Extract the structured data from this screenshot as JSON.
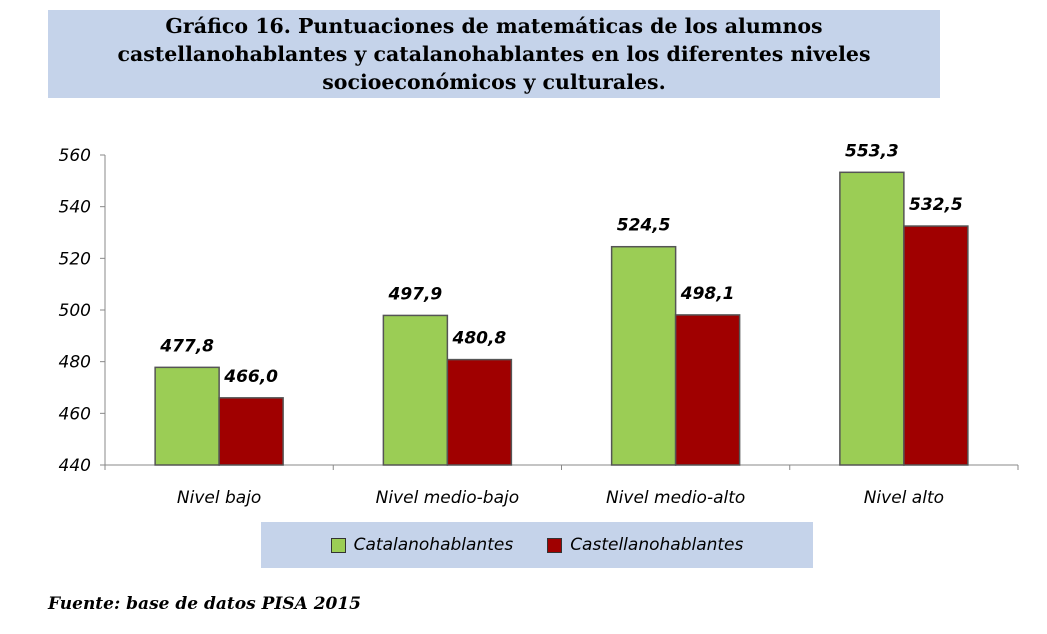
{
  "title": "Gráfico 16. Puntuaciones de matemáticas de los alumnos\ncastellanohablantes y catalanohablantes en los diferentes niveles\nsocioeconómicos y culturales.",
  "source": "Fuente: base de datos PISA 2015",
  "colors": {
    "catalan": "#9bcd55",
    "castellano": "#a00000",
    "panel": "#c5d3ea"
  },
  "chart_data": {
    "type": "bar",
    "categories": [
      "Nivel bajo",
      "Nivel medio-bajo",
      "Nivel medio-alto",
      "Nivel alto"
    ],
    "series": [
      {
        "name": "Catalanohablantes",
        "values": [
          477.8,
          497.9,
          524.5,
          553.3
        ],
        "labels": [
          "477,8",
          "497,9",
          "524,5",
          "553,3"
        ]
      },
      {
        "name": "Castellanohablantes",
        "values": [
          466.0,
          480.8,
          498.1,
          532.5
        ],
        "labels": [
          "466,0",
          "480,8",
          "498,1",
          "532,5"
        ]
      }
    ],
    "ylim": [
      440,
      560
    ],
    "yticks": [
      440,
      460,
      480,
      500,
      520,
      540,
      560
    ],
    "grid": false,
    "legend": "bottom"
  }
}
